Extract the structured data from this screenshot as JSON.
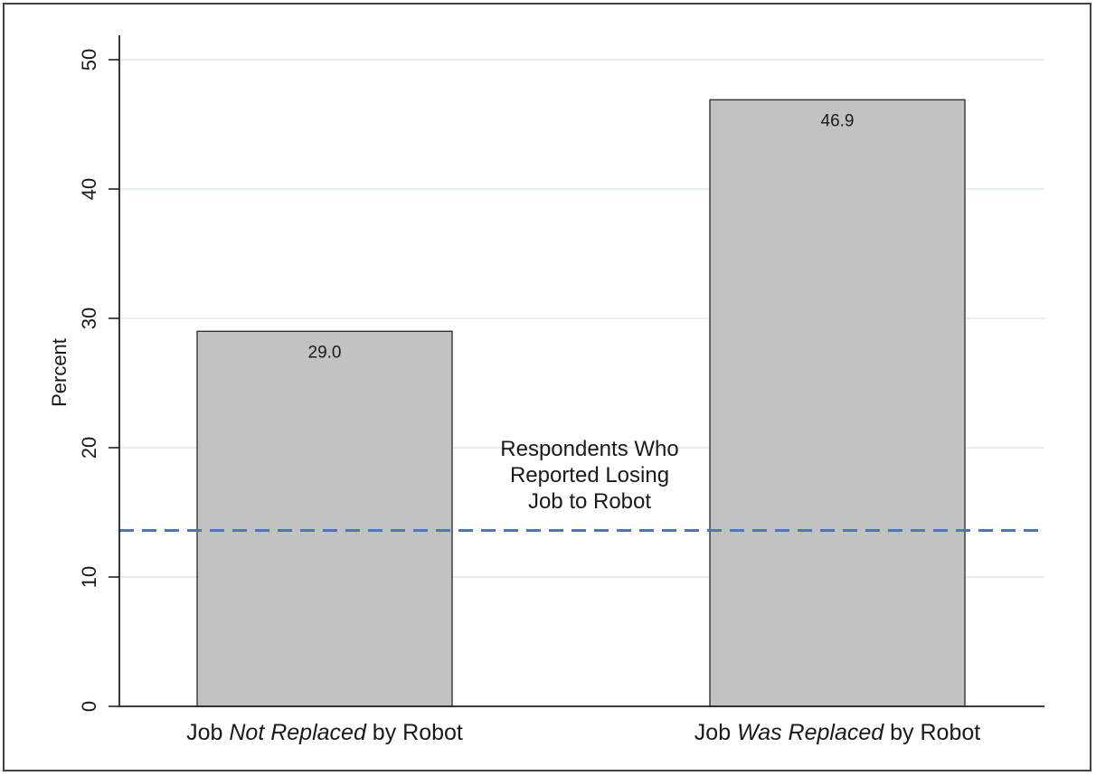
{
  "chart_data": {
    "type": "bar",
    "title": "",
    "xlabel": "",
    "ylabel": "Percent",
    "ylim": [
      0,
      52
    ],
    "yticks": [
      0,
      10,
      20,
      30,
      40,
      50
    ],
    "grid": true,
    "categories": [
      {
        "parts": [
          {
            "text": "Job ",
            "italic": false
          },
          {
            "text": "Not Replaced",
            "italic": true
          },
          {
            "text": " by Robot",
            "italic": false
          }
        ]
      },
      {
        "parts": [
          {
            "text": "Job ",
            "italic": false
          },
          {
            "text": "Was Replaced",
            "italic": true
          },
          {
            "text": " by Robot",
            "italic": false
          }
        ]
      }
    ],
    "values": [
      29.0,
      46.9
    ],
    "data_labels": [
      "29.0",
      "46.9"
    ],
    "bar_color": "#c1c3c3",
    "reference_line": {
      "value": 13.6,
      "style": "dashed",
      "color": "#4a74c4",
      "label_lines": [
        "Respondents Who",
        "Reported Losing",
        "Job to Robot"
      ]
    }
  }
}
